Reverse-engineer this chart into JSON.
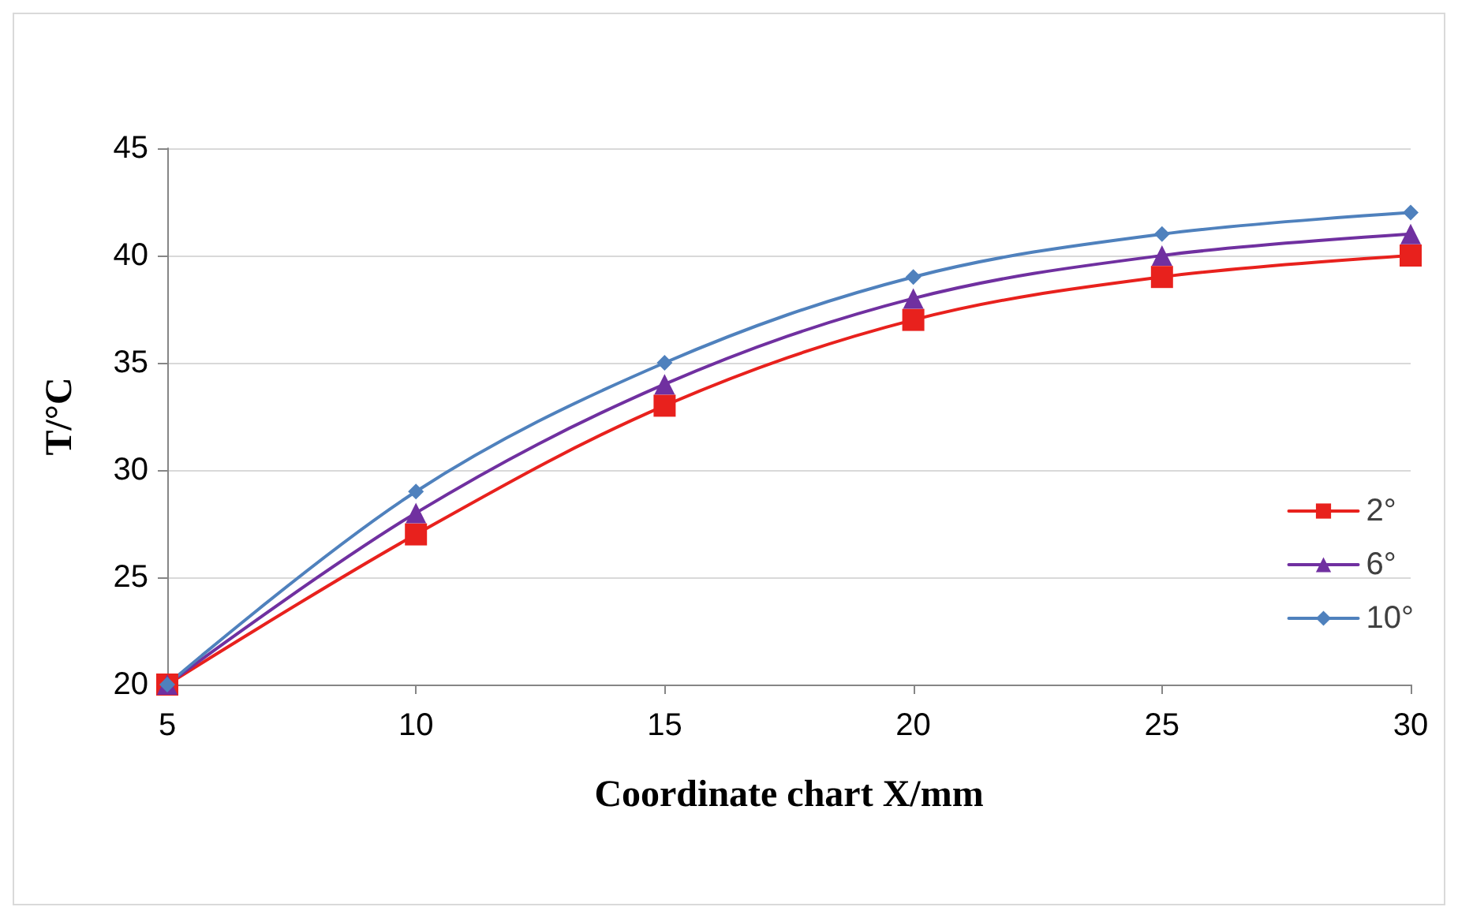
{
  "chart_data": {
    "type": "line",
    "xlabel": "Coordinate chart X/mm",
    "ylabel": "T/°C",
    "x": [
      5,
      10,
      15,
      20,
      25,
      30
    ],
    "series": [
      {
        "name": "2°",
        "color": "#e8211d",
        "marker": "square",
        "values": [
          20,
          27,
          33,
          37,
          39,
          40
        ]
      },
      {
        "name": "6°",
        "color": "#7030a0",
        "marker": "triangle",
        "values": [
          20,
          28,
          34,
          38,
          40,
          41
        ]
      },
      {
        "name": "10°",
        "color": "#4f81bd",
        "marker": "diamond",
        "values": [
          20,
          29,
          35,
          39,
          41,
          42
        ]
      }
    ],
    "xlim": [
      5,
      30
    ],
    "xticks": [
      5,
      10,
      15,
      20,
      25,
      30
    ],
    "ylim": [
      20,
      45
    ],
    "yticks": [
      20,
      25,
      30,
      35,
      40,
      45
    ],
    "grid": "y",
    "legend": "right",
    "line_style": "solid"
  }
}
